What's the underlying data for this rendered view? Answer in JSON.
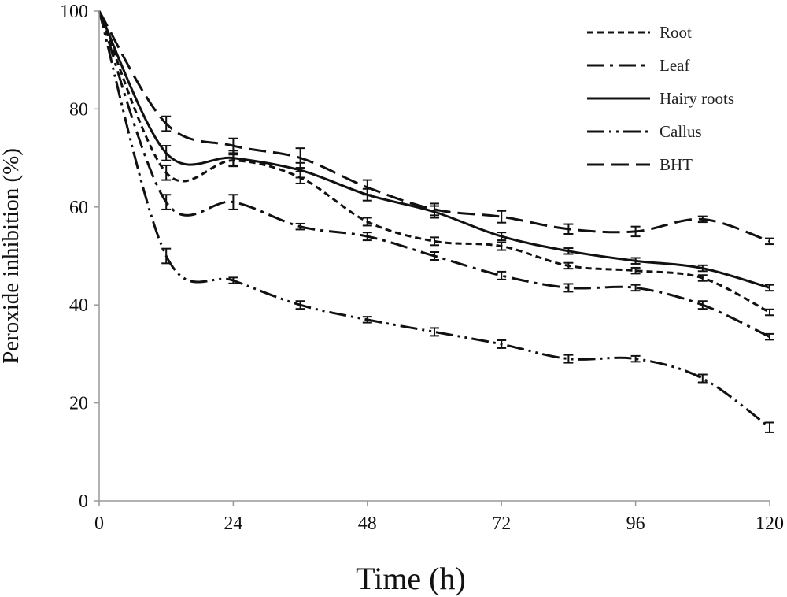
{
  "chart_data": {
    "type": "line",
    "title": "",
    "xlabel": "Time (h)",
    "ylabel": "Peroxide inhibition (%)",
    "xlim": [
      0,
      120
    ],
    "ylim": [
      0,
      100
    ],
    "xticks": [
      0,
      24,
      48,
      72,
      96,
      120
    ],
    "yticks": [
      0,
      20,
      40,
      60,
      80,
      100
    ],
    "grid": false,
    "legend_position": "top-right",
    "x": [
      0,
      12,
      24,
      36,
      48,
      60,
      72,
      84,
      96,
      108,
      120
    ],
    "series": [
      {
        "name": "Root",
        "dash": "root",
        "values": [
          100,
          67,
          69.5,
          66,
          57,
          53,
          52,
          48,
          47,
          45.5,
          38.5
        ],
        "errors": [
          0,
          1.5,
          1.2,
          1.2,
          0.8,
          0.8,
          0.8,
          0.6,
          0.6,
          0.6,
          0.6
        ]
      },
      {
        "name": "Leaf",
        "dash": "leaf",
        "values": [
          100,
          61,
          61,
          56,
          54,
          50,
          46,
          43.5,
          43.5,
          40,
          33.5
        ],
        "errors": [
          0,
          1.5,
          1.5,
          0.6,
          0.8,
          0.8,
          0.8,
          0.8,
          0.6,
          0.8,
          0.6
        ]
      },
      {
        "name": "Hairy roots",
        "dash": "hairy",
        "values": [
          100,
          71,
          70,
          67.5,
          62.5,
          59,
          54,
          51,
          49,
          47.5,
          43.5
        ],
        "errors": [
          0,
          1.5,
          1.5,
          1.5,
          1.2,
          1.2,
          0.8,
          0.6,
          0.6,
          0.6,
          0.6
        ]
      },
      {
        "name": "Callus",
        "dash": "callus",
        "values": [
          100,
          50,
          45,
          40,
          37,
          34.5,
          32,
          29,
          29,
          25,
          15
        ],
        "errors": [
          0,
          1.5,
          0.6,
          0.8,
          0.6,
          0.8,
          0.8,
          0.8,
          0.6,
          0.8,
          1.0
        ]
      },
      {
        "name": "BHT",
        "dash": "bht",
        "values": [
          100,
          77,
          72.5,
          70,
          64,
          59.5,
          58,
          55.5,
          55,
          57.5,
          53
        ],
        "errors": [
          0,
          1.5,
          1.5,
          2.0,
          1.5,
          1.2,
          1.2,
          1.0,
          1.0,
          0.6,
          0.6
        ]
      }
    ]
  }
}
